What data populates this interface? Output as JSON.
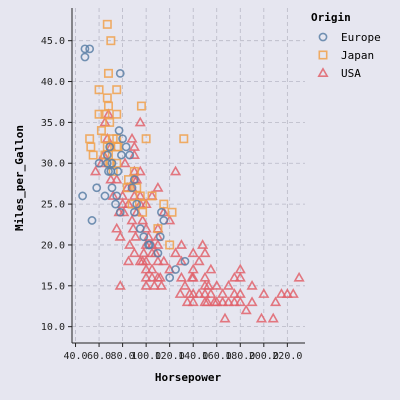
{
  "chart_data": {
    "type": "scatter",
    "xlabel": "Horsepower",
    "ylabel": "Miles_per_Gallon",
    "xlim": [
      37,
      235
    ],
    "ylim": [
      8,
      49
    ],
    "x_ticks": [
      "40.0",
      "60.0",
      "80.0",
      "100.0",
      "120.0",
      "140.0",
      "160.0",
      "180.0",
      "200.0",
      "220.0"
    ],
    "y_ticks": [
      "10.0",
      "15.0",
      "20.0",
      "25.0",
      "30.0",
      "35.0",
      "40.0",
      "45.0"
    ],
    "grid": true,
    "legend": {
      "title": "Origin",
      "placement": "top-right",
      "entries": [
        {
          "name": "Europe",
          "marker": "circle",
          "color": "#5b7fa6"
        },
        {
          "name": "Japan",
          "marker": "square",
          "color": "#f0a04b"
        },
        {
          "name": "USA",
          "marker": "triangle",
          "color": "#e0626b"
        }
      ]
    },
    "series": [
      {
        "name": "Europe",
        "points": [
          [
            46,
            26
          ],
          [
            48,
            43
          ],
          [
            48,
            44
          ],
          [
            52,
            44
          ],
          [
            54,
            23
          ],
          [
            58,
            27
          ],
          [
            60,
            30
          ],
          [
            65,
            26
          ],
          [
            67,
            30
          ],
          [
            67,
            31
          ],
          [
            68,
            29
          ],
          [
            69,
            32
          ],
          [
            70,
            29
          ],
          [
            71,
            27
          ],
          [
            71,
            30
          ],
          [
            74,
            25
          ],
          [
            75,
            26
          ],
          [
            76,
            29
          ],
          [
            77,
            34
          ],
          [
            78,
            24
          ],
          [
            78,
            41
          ],
          [
            79,
            31
          ],
          [
            80,
            33
          ],
          [
            83,
            32
          ],
          [
            86,
            31
          ],
          [
            88,
            27
          ],
          [
            90,
            24
          ],
          [
            90,
            28
          ],
          [
            92,
            25
          ],
          [
            95,
            22
          ],
          [
            98,
            21
          ],
          [
            102,
            20
          ],
          [
            110,
            19
          ],
          [
            112,
            21
          ],
          [
            113,
            24
          ],
          [
            115,
            23
          ],
          [
            120,
            16
          ],
          [
            125,
            17
          ],
          [
            133,
            18
          ],
          [
            103,
            20
          ]
        ]
      },
      {
        "name": "Japan",
        "points": [
          [
            52,
            33
          ],
          [
            53,
            32
          ],
          [
            55,
            31
          ],
          [
            60,
            36
          ],
          [
            60,
            39
          ],
          [
            62,
            34
          ],
          [
            65,
            31
          ],
          [
            65,
            33
          ],
          [
            65,
            36
          ],
          [
            67,
            38
          ],
          [
            67,
            47
          ],
          [
            67,
            32
          ],
          [
            68,
            31
          ],
          [
            68,
            37
          ],
          [
            68,
            41
          ],
          [
            69,
            30
          ],
          [
            69,
            35
          ],
          [
            70,
            32
          ],
          [
            70,
            45
          ],
          [
            70,
            30
          ],
          [
            72,
            29
          ],
          [
            72,
            33
          ],
          [
            75,
            36
          ],
          [
            75,
            32
          ],
          [
            75,
            33
          ],
          [
            75,
            39
          ],
          [
            75,
            30
          ],
          [
            76,
            32
          ],
          [
            84,
            27
          ],
          [
            85,
            28
          ],
          [
            88,
            25
          ],
          [
            90,
            29
          ],
          [
            92,
            27
          ],
          [
            95,
            26
          ],
          [
            96,
            37
          ],
          [
            97,
            25
          ],
          [
            97,
            24
          ],
          [
            100,
            33
          ],
          [
            105,
            26
          ],
          [
            110,
            22
          ],
          [
            115,
            25
          ],
          [
            120,
            20
          ],
          [
            122,
            24
          ],
          [
            132,
            33
          ]
        ]
      },
      {
        "name": "USA",
        "points": [
          [
            57,
            29
          ],
          [
            62,
            30
          ],
          [
            64,
            31
          ],
          [
            65,
            35
          ],
          [
            67,
            33
          ],
          [
            68,
            36
          ],
          [
            70,
            32
          ],
          [
            70,
            28
          ],
          [
            72,
            26
          ],
          [
            75,
            22
          ],
          [
            75,
            28
          ],
          [
            77,
            24
          ],
          [
            78,
            15
          ],
          [
            78,
            21
          ],
          [
            80,
            26
          ],
          [
            80,
            25
          ],
          [
            81,
            24
          ],
          [
            82,
            30
          ],
          [
            84,
            27
          ],
          [
            85,
            25
          ],
          [
            85,
            18
          ],
          [
            86,
            20
          ],
          [
            88,
            23
          ],
          [
            88,
            27
          ],
          [
            88,
            33
          ],
          [
            89,
            22
          ],
          [
            90,
            19
          ],
          [
            90,
            26
          ],
          [
            90,
            28
          ],
          [
            90,
            29
          ],
          [
            90,
            31
          ],
          [
            90,
            32
          ],
          [
            91,
            21
          ],
          [
            92,
            24
          ],
          [
            92,
            28
          ],
          [
            95,
            18
          ],
          [
            95,
            25
          ],
          [
            95,
            29
          ],
          [
            95,
            26
          ],
          [
            95,
            35
          ],
          [
            97,
            18
          ],
          [
            97,
            23
          ],
          [
            98,
            19
          ],
          [
            100,
            20
          ],
          [
            100,
            18
          ],
          [
            100,
            22
          ],
          [
            100,
            25
          ],
          [
            100,
            16
          ],
          [
            100,
            15
          ],
          [
            100,
            17
          ],
          [
            102,
            21
          ],
          [
            105,
            17
          ],
          [
            105,
            19
          ],
          [
            105,
            20
          ],
          [
            105,
            26
          ],
          [
            105,
            16
          ],
          [
            107,
            15
          ],
          [
            108,
            19
          ],
          [
            110,
            16
          ],
          [
            110,
            18
          ],
          [
            110,
            20
          ],
          [
            110,
            21
          ],
          [
            110,
            22
          ],
          [
            110,
            27
          ],
          [
            112,
            16
          ],
          [
            113,
            15
          ],
          [
            115,
            18
          ],
          [
            115,
            24
          ],
          [
            120,
            23
          ],
          [
            120,
            17
          ],
          [
            125,
            29
          ],
          [
            125,
            19
          ],
          [
            129,
            14
          ],
          [
            130,
            20
          ],
          [
            130,
            18
          ],
          [
            130,
            16
          ],
          [
            133,
            15
          ],
          [
            135,
            13
          ],
          [
            137,
            14
          ],
          [
            139,
            16
          ],
          [
            140,
            17
          ],
          [
            140,
            19
          ],
          [
            140,
            14
          ],
          [
            140,
            16
          ],
          [
            140,
            13
          ],
          [
            145,
            18
          ],
          [
            145,
            14
          ],
          [
            148,
            20
          ],
          [
            150,
            14
          ],
          [
            150,
            15
          ],
          [
            150,
            13
          ],
          [
            150,
            19
          ],
          [
            150,
            16
          ],
          [
            152,
            13
          ],
          [
            153,
            15
          ],
          [
            155,
            14
          ],
          [
            155,
            17
          ],
          [
            158,
            13
          ],
          [
            160,
            15
          ],
          [
            160,
            13
          ],
          [
            165,
            14
          ],
          [
            165,
            13
          ],
          [
            167,
            11
          ],
          [
            170,
            15
          ],
          [
            170,
            13
          ],
          [
            175,
            13
          ],
          [
            175,
            14
          ],
          [
            175,
            16
          ],
          [
            180,
            17
          ],
          [
            180,
            13
          ],
          [
            180,
            14
          ],
          [
            180,
            16
          ],
          [
            185,
            12
          ],
          [
            190,
            15
          ],
          [
            190,
            13
          ],
          [
            198,
            11
          ],
          [
            200,
            14
          ],
          [
            208,
            11
          ],
          [
            210,
            13
          ],
          [
            215,
            14
          ],
          [
            220,
            14
          ],
          [
            225,
            14
          ],
          [
            230,
            16
          ]
        ]
      }
    ]
  }
}
